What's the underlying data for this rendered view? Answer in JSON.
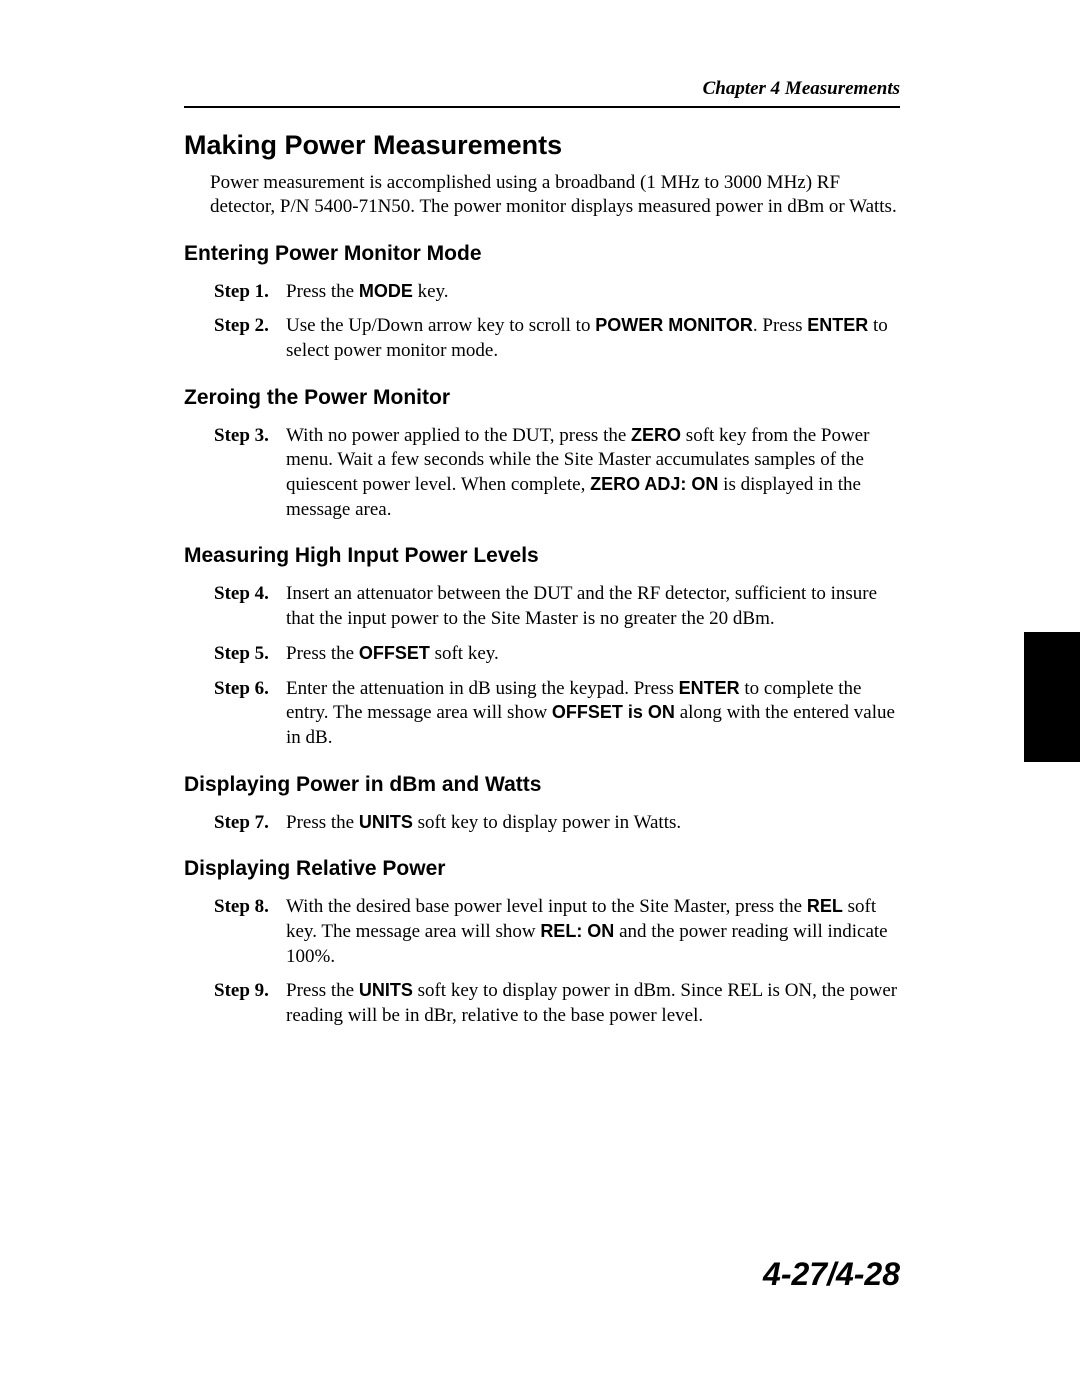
{
  "chapter_header": "Chapter 4 Measurements",
  "title": "Making Power Measurements",
  "intro": "Power measurement is accomplished using a broadband (1 MHz to 3000 MHz) RF detector, P/N 5400-71N50. The power monitor displays measured power in dBm or Watts.",
  "sections": {
    "s1": {
      "heading": "Entering Power Monitor Mode",
      "step1_label": "Step 1.",
      "step1_pre": "Press the ",
      "step1_kw": "MODE",
      "step1_post": " key.",
      "step2_label": "Step 2.",
      "step2_pre": "Use the Up/Down arrow key to scroll to ",
      "step2_kw1": "POWER MONITOR",
      "step2_mid": ". Press ",
      "step2_kw2": "ENTER",
      "step2_post": " to select power monitor mode."
    },
    "s2": {
      "heading": "Zeroing the Power Monitor",
      "step3_label": "Step 3.",
      "step3_pre": "With no power applied to the DUT, press the ",
      "step3_kw1": "ZERO",
      "step3_mid": " soft key from the Power menu. Wait a few seconds while the Site Master accumulates samples of the quiescent power level. When complete, ",
      "step3_kw2": "ZERO ADJ: ON",
      "step3_post": " is displayed in the message area."
    },
    "s3": {
      "heading": "Measuring High Input Power Levels",
      "step4_label": "Step 4.",
      "step4_text": "Insert an attenuator between the DUT and the RF detector, sufficient to insure that the input power to the Site Master is no greater the 20 dBm.",
      "step5_label": "Step 5.",
      "step5_pre": "Press the ",
      "step5_kw": "OFFSET",
      "step5_post": " soft key.",
      "step6_label": "Step 6.",
      "step6_pre": "Enter the attenuation in dB using the keypad. Press ",
      "step6_kw1": "ENTER",
      "step6_mid": " to complete the entry. The message area will show ",
      "step6_kw2": "OFFSET is ON",
      "step6_post": " along with the entered value in dB."
    },
    "s4": {
      "heading": "Displaying Power in dBm and Watts",
      "step7_label": "Step 7.",
      "step7_pre": "Press the ",
      "step7_kw": "UNITS",
      "step7_post": " soft key to display power in Watts."
    },
    "s5": {
      "heading": "Displaying Relative Power",
      "step8_label": "Step 8.",
      "step8_pre": "With the desired base power level input to the Site Master, press the ",
      "step8_kw1": "REL",
      "step8_mid": " soft key. The message area will show ",
      "step8_kw2": "REL: ON",
      "step8_post": " and the power reading will indicate 100%.",
      "step9_label": "Step 9.",
      "step9_pre": "Press the ",
      "step9_kw": "UNITS",
      "step9_post": " soft key to display power in dBm. Since REL is ON, the power reading will be in dBr, relative to the base power level."
    }
  },
  "page_number": "4-27/4-28"
}
